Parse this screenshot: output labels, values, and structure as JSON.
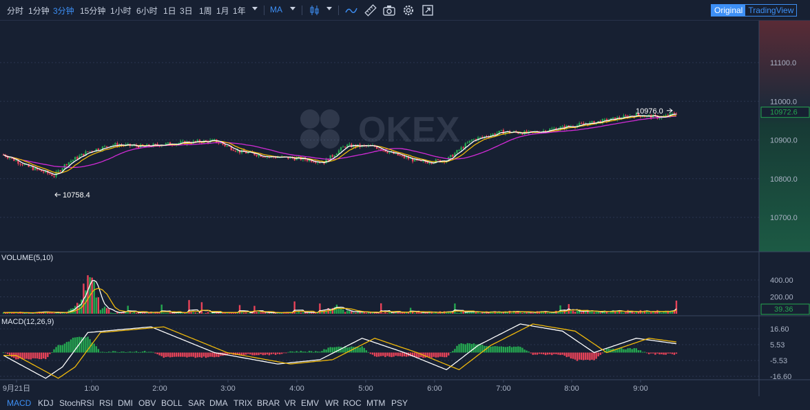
{
  "toolbar": {
    "timeframes": [
      "分时",
      "1分钟",
      "3分钟",
      "15分钟",
      "1小时",
      "6小时",
      "1日",
      "3日",
      "1周",
      "1月",
      "1年"
    ],
    "active_timeframe": "3分钟",
    "indicator_select": "MA",
    "icons": [
      "candlestick-type-icon",
      "line-indicator-icon",
      "ruler-draw-icon",
      "camera-screenshot-icon",
      "settings-gear-icon",
      "fullscreen-expand-icon"
    ],
    "view_options": [
      "Original",
      "TradingView"
    ],
    "active_view": "Original"
  },
  "watermark": "OKEX",
  "main_chart": {
    "y_ticks": [
      "11100.0",
      "11000.0",
      "10900.0",
      "10800.0",
      "10700.0"
    ],
    "y_tick_values": [
      11100,
      11000,
      10900,
      10800,
      10700
    ],
    "current_price": "10972.6",
    "high_label": "10976.0",
    "high_value": 10976.0,
    "low_label": "10758.4",
    "low_value": 10758.4
  },
  "volume_pane": {
    "title": "VOLUME(5,10)",
    "y_ticks": [
      "400.00",
      "200.00"
    ],
    "y_tick_values": [
      400,
      200
    ],
    "current_value": "39.36"
  },
  "macd_pane": {
    "title": "MACD(12,26,9)",
    "y_ticks": [
      "16.60",
      "5.53",
      "-5.53",
      "-16.60"
    ],
    "y_tick_values": [
      16.6,
      5.53,
      -5.53,
      -16.6
    ]
  },
  "x_axis": {
    "labels": [
      "9月21日",
      "1:00",
      "2:00",
      "3:00",
      "4:00",
      "5:00",
      "6:00",
      "7:00",
      "8:00",
      "9:00"
    ]
  },
  "indicator_tabs": [
    "MACD",
    "KDJ",
    "StochRSI",
    "RSI",
    "DMI",
    "OBV",
    "BOLL",
    "SAR",
    "DMA",
    "TRIX",
    "BRAR",
    "VR",
    "EMV",
    "WR",
    "ROC",
    "MTM",
    "PSY"
  ],
  "active_indicator": "MACD",
  "colors": {
    "background": "#172032",
    "up": "#25a750",
    "down": "#e94359",
    "accent": "#3d8ff5",
    "ma_fast": "#ffffff",
    "ma_mid": "#f0b90b",
    "ma_slow": "#d32bd8"
  },
  "chart_data": {
    "type": "candlestick",
    "price_keypoints_by_candle_index": [
      [
        0,
        10862
      ],
      [
        12,
        10830
      ],
      [
        24,
        10808
      ],
      [
        30,
        10840
      ],
      [
        40,
        10870
      ],
      [
        52,
        10888
      ],
      [
        66,
        10883
      ],
      [
        82,
        10892
      ],
      [
        100,
        10898
      ],
      [
        112,
        10870
      ],
      [
        126,
        10857
      ],
      [
        140,
        10852
      ],
      [
        152,
        10843
      ],
      [
        162,
        10885
      ],
      [
        176,
        10883
      ],
      [
        186,
        10862
      ],
      [
        198,
        10842
      ],
      [
        210,
        10848
      ],
      [
        222,
        10900
      ],
      [
        236,
        10921
      ],
      [
        250,
        10918
      ],
      [
        262,
        10930
      ],
      [
        280,
        10945
      ],
      [
        300,
        10965
      ],
      [
        312,
        10958
      ],
      [
        320,
        10972
      ]
    ],
    "candle_count": 320,
    "volume_keypoints_by_candle_index": [
      [
        0,
        20
      ],
      [
        30,
        20
      ],
      [
        36,
        160
      ],
      [
        40,
        450
      ],
      [
        42,
        420
      ],
      [
        46,
        120
      ],
      [
        52,
        20
      ],
      [
        150,
        20
      ],
      [
        156,
        110
      ],
      [
        162,
        50
      ],
      [
        170,
        20
      ],
      [
        320,
        39
      ]
    ],
    "macd_keypoints_by_candle_index": [
      [
        0,
        -2
      ],
      [
        20,
        -18
      ],
      [
        28,
        -10
      ],
      [
        40,
        14
      ],
      [
        70,
        18
      ],
      [
        100,
        0
      ],
      [
        130,
        -8
      ],
      [
        150,
        -5
      ],
      [
        170,
        10
      ],
      [
        190,
        0
      ],
      [
        210,
        -12
      ],
      [
        225,
        5
      ],
      [
        245,
        20
      ],
      [
        265,
        15
      ],
      [
        280,
        0
      ],
      [
        300,
        10
      ],
      [
        320,
        6
      ]
    ]
  }
}
